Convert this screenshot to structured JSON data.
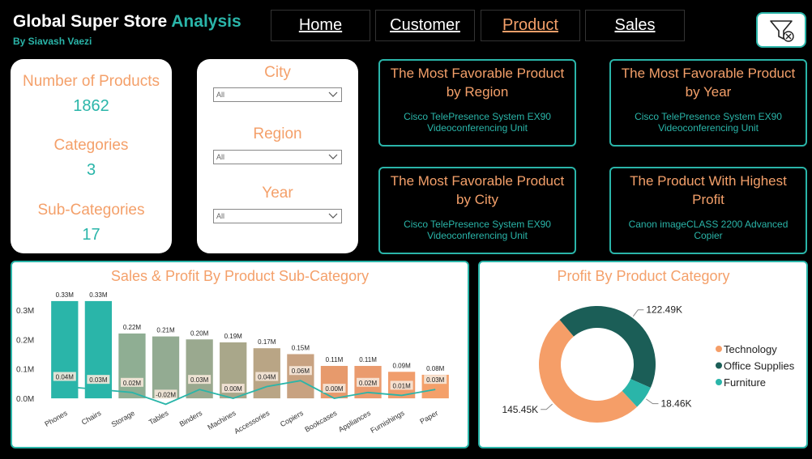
{
  "header": {
    "title": "Global Super Store",
    "title_accent": "Analysis",
    "subtitle": "By Siavash Vaezi"
  },
  "nav": [
    "Home",
    "Customer",
    "Product",
    "Sales"
  ],
  "active_nav": 2,
  "kpis": [
    {
      "label": "Number of Products",
      "value": 1862
    },
    {
      "label": "Categories",
      "value": 3
    },
    {
      "label": "Sub-Categories",
      "value": 17
    }
  ],
  "filters": [
    {
      "label": "City",
      "value": "All"
    },
    {
      "label": "Region",
      "value": "All"
    },
    {
      "label": "Year",
      "value": "All"
    }
  ],
  "cards": [
    {
      "title": "The Most Favorable Product by Region",
      "value": "Cisco TelePresence System EX90 Videoconferencing Unit"
    },
    {
      "title": "The Most Favorable Product by Year",
      "value": "Cisco TelePresence System EX90 Videoconferencing Unit"
    },
    {
      "title": "The Most Favorable Product by City",
      "value": "Cisco TelePresence System EX90 Videoconferencing Unit"
    },
    {
      "title": "The Product With Highest Profit",
      "value": "Canon imageCLASS 2200 Advanced Copier"
    }
  ],
  "chart_data": [
    {
      "type": "combo",
      "title": "Sales & Profit By Product Sub-Category",
      "categories": [
        "Phones",
        "Chairs",
        "Storage",
        "Tables",
        "Binders",
        "Machines",
        "Accessories",
        "Copiers",
        "Bookcases",
        "Appliances",
        "Furnishings",
        "Paper"
      ],
      "series": [
        {
          "type": "bar",
          "colors": [
            "#2ab5a9",
            "#2ab5a9",
            "#8fae93",
            "#93ab92",
            "#9aa98f",
            "#a9a78a",
            "#b9a585",
            "#c8a281",
            "#e79a6c",
            "#ea9b6e",
            "#f09d6c",
            "#f4a06a"
          ],
          "values": [
            0.33,
            0.33,
            0.22,
            0.21,
            0.2,
            0.19,
            0.17,
            0.15,
            0.11,
            0.11,
            0.09,
            0.08
          ],
          "value_labels": [
            "0.33M",
            "0.33M",
            "0.22M",
            "0.21M",
            "0.20M",
            "0.19M",
            "0.17M",
            "0.15M",
            "0.11M",
            "0.11M",
            "0.09M",
            "0.08M"
          ]
        },
        {
          "type": "line",
          "color": "#2ab5a9",
          "values": [
            0.04,
            0.03,
            0.02,
            -0.02,
            0.03,
            0.0,
            0.04,
            0.06,
            0.0,
            0.02,
            0.01,
            0.03
          ],
          "value_labels": [
            "0.04M",
            "0.03M",
            "0.02M",
            "-0.02M",
            "0.03M",
            "0.00M",
            "0.04M",
            "0.06M",
            "0.00M",
            "0.02M",
            "0.01M",
            "0.03M"
          ]
        }
      ],
      "ylim": [
        -0.03,
        0.36
      ],
      "yticks": [
        {
          "value": 0,
          "label": "0.0M"
        },
        {
          "value": 0.1,
          "label": "0.1M"
        },
        {
          "value": 0.2,
          "label": "0.2M"
        },
        {
          "value": 0.3,
          "label": "0.3M"
        }
      ],
      "grid": false
    },
    {
      "type": "pie",
      "title": "Profit By Product Category",
      "donut": true,
      "legend": "right",
      "categories": [
        "Technology",
        "Office Supplies",
        "Furniture"
      ],
      "values": [
        145.45,
        122.49,
        18.46
      ],
      "value_labels": [
        "145.45K",
        "122.49K",
        "18.46K"
      ],
      "colors": [
        "#f59e68",
        "#1b5e57",
        "#2ab5a9"
      ]
    }
  ]
}
